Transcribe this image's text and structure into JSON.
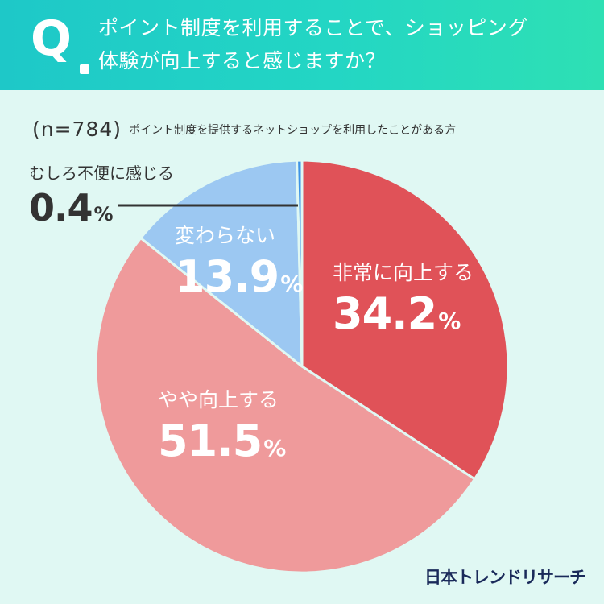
{
  "header": {
    "q_mark": "Q",
    "question_line1": "ポイント制度を利用することで、ショッピング",
    "question_line2": "体験が向上すると感じますか？"
  },
  "sample": {
    "n_text": "(n=784)",
    "description": "ポイント制度を提供するネットショップを利用したことがある方"
  },
  "chart_data": {
    "type": "pie",
    "title": "ポイント制度を利用することで、ショッピング体験が向上すると感じますか？",
    "n": 784,
    "unit": "%",
    "slices": [
      {
        "label": "非常に向上する",
        "value": 34.2,
        "value_text": "34.2",
        "color": "#e05258"
      },
      {
        "label": "やや向上する",
        "value": 51.5,
        "value_text": "51.5",
        "color": "#ef9a9b"
      },
      {
        "label": "変わらない",
        "value": 13.9,
        "value_text": "13.9",
        "color": "#9cc8f2"
      },
      {
        "label": "むしろ不便に感じる",
        "value": 0.4,
        "value_text": "0.4",
        "color": "#3d92e6"
      }
    ],
    "start_angle": "12 o'clock",
    "direction": "clockwise"
  },
  "logo": {
    "text": "日本トレンドリサーチ"
  },
  "colors": {
    "header_from": "#1ec8c8",
    "header_to": "#2ee0b4",
    "background": "#e0f8f3",
    "text_dark": "#333333",
    "logo": "#1a2a5a"
  }
}
